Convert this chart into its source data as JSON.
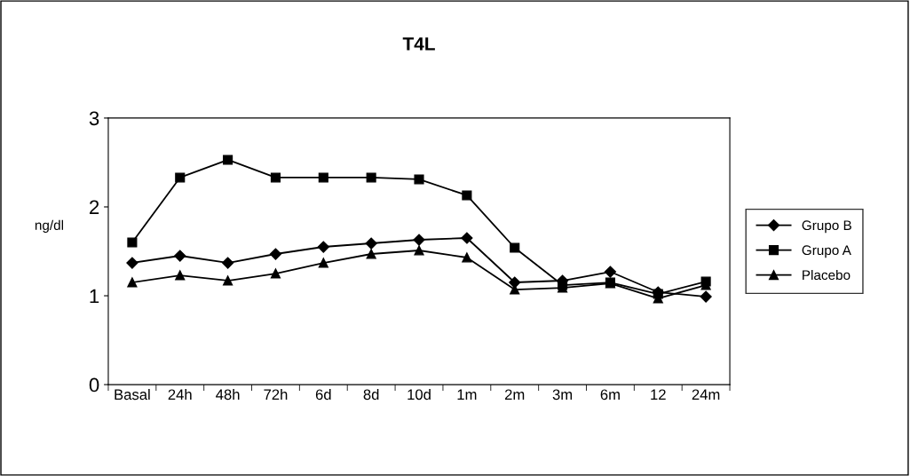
{
  "chart_data": {
    "type": "line",
    "title": "T4L",
    "ylabel": "ng/dl",
    "categories": [
      "Basal",
      "24h",
      "48h",
      "72h",
      "6d",
      "8d",
      "10d",
      "1m",
      "2m",
      "3m",
      "6m",
      "12",
      "24m"
    ],
    "series": [
      {
        "name": "Grupo B",
        "color": "#000000",
        "marker": "diamond",
        "values": [
          1.37,
          1.45,
          1.37,
          1.47,
          1.55,
          1.59,
          1.63,
          1.65,
          1.15,
          1.17,
          1.27,
          1.04,
          0.99
        ]
      },
      {
        "name": "Grupo A",
        "color": "#000000",
        "marker": "square",
        "values": [
          1.6,
          2.33,
          2.53,
          2.33,
          2.33,
          2.33,
          2.31,
          2.13,
          1.54,
          1.12,
          1.15,
          1.02,
          1.16
        ]
      },
      {
        "name": "Placebo",
        "color": "#000000",
        "marker": "triangle",
        "values": [
          1.15,
          1.23,
          1.17,
          1.25,
          1.37,
          1.47,
          1.51,
          1.43,
          1.07,
          1.09,
          1.14,
          0.97,
          1.12
        ]
      }
    ],
    "ylim": [
      0,
      3
    ],
    "yticks": [
      0,
      1,
      2,
      3
    ],
    "grid": false,
    "legend": "right",
    "line_style": "solid"
  }
}
